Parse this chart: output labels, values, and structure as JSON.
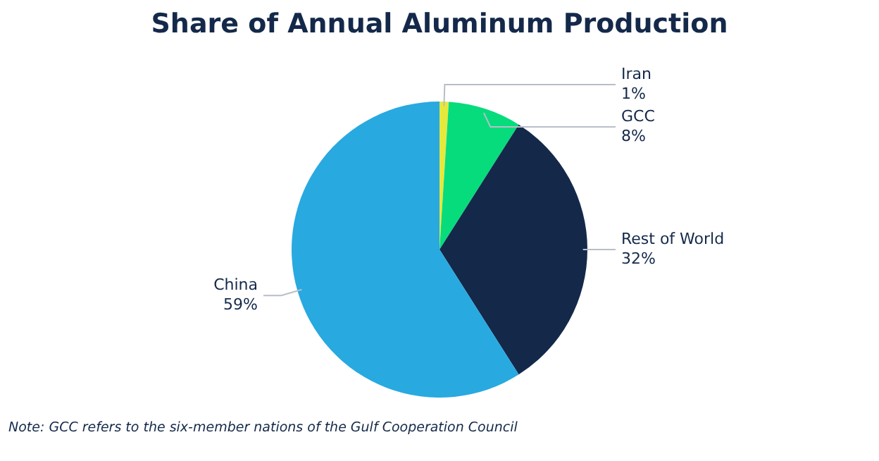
{
  "chart_data": {
    "type": "pie",
    "title": "Share of Annual Aluminum Production",
    "categories": [
      "Iran",
      "GCC",
      "Rest of World",
      "China"
    ],
    "values": [
      1,
      8,
      32,
      59
    ],
    "value_labels": [
      "1%",
      "8%",
      "32%",
      "59%"
    ],
    "colors": [
      "#e6e83c",
      "#06dc7c",
      "#14294a",
      "#28a9e0"
    ],
    "legend": false,
    "annotations": [
      "Note: GCC refers to the six-member nations of the Gulf Cooperation Council"
    ]
  }
}
